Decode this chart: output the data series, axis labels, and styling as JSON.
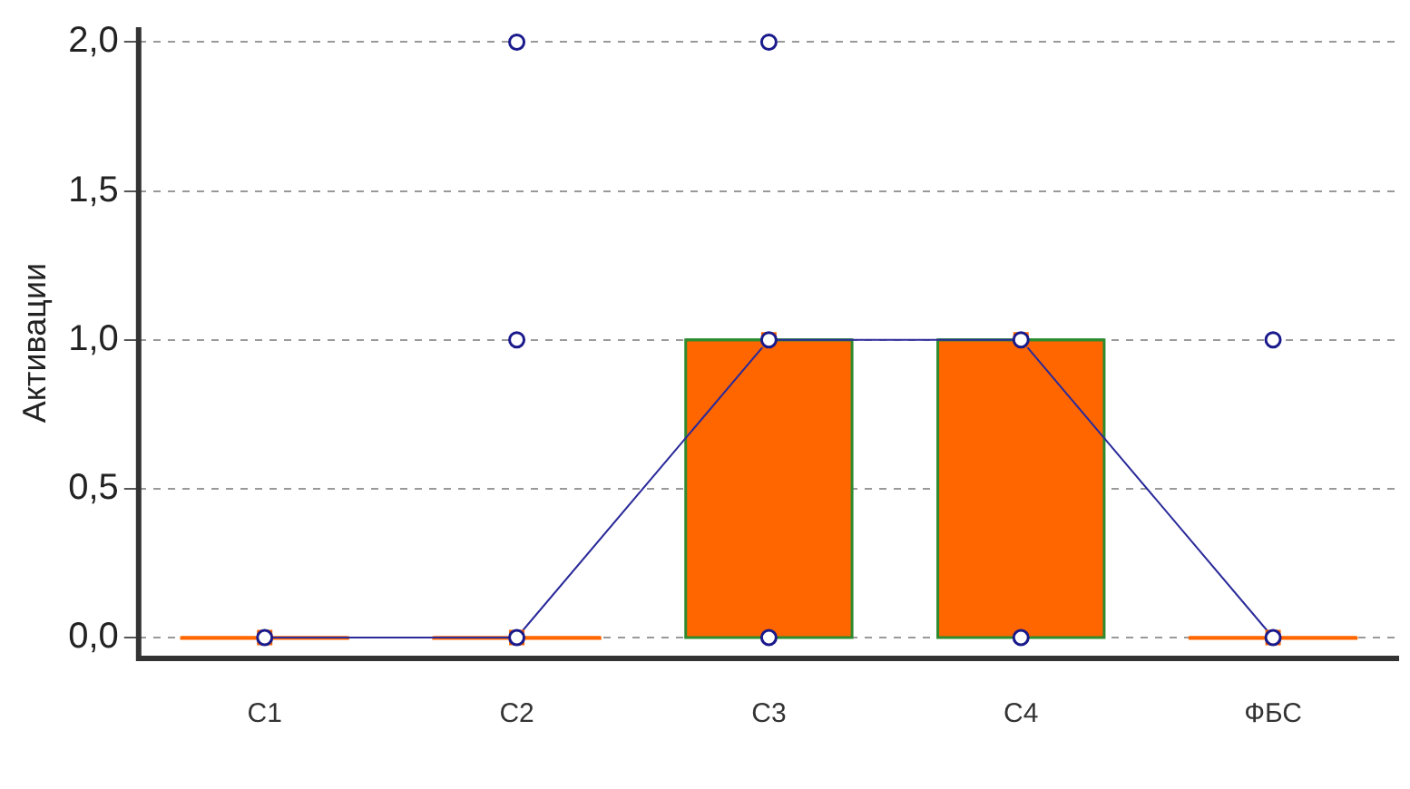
{
  "chart_data": {
    "type": "box",
    "ylabel": "Активации",
    "categories": [
      "C1",
      "C2",
      "C3",
      "C4",
      "ФБС"
    ],
    "series": [
      {
        "type": "box",
        "color": "#ff6600",
        "boxes": [
          {
            "low": 0,
            "q1": 0,
            "median": 0,
            "q3": 0,
            "high": 0
          },
          {
            "low": 0,
            "q1": 0,
            "median": 0,
            "q3": 0,
            "high": 0
          },
          {
            "low": 0,
            "q1": 0,
            "median": 1,
            "q3": 1,
            "high": 1
          },
          {
            "low": 0,
            "q1": 0,
            "median": 1,
            "q3": 1,
            "high": 1
          },
          {
            "low": 0,
            "q1": 0,
            "median": 0,
            "q3": 0,
            "high": 0
          }
        ]
      },
      {
        "type": "line",
        "color": "#2a2a9a",
        "marker": "square",
        "values": [
          0,
          0,
          1,
          1,
          0
        ]
      },
      {
        "type": "scatter",
        "color": "#1a1a8c",
        "marker": "circle",
        "x": [
          "C1",
          "C2",
          "C2",
          "C2",
          "C3",
          "C3",
          "C3",
          "C4",
          "C4",
          "ФБС",
          "ФБС"
        ],
        "values": [
          0,
          0,
          1,
          2,
          0,
          1,
          2,
          0,
          1,
          0,
          1
        ]
      }
    ],
    "ylim": [
      -0.07,
      2.05
    ],
    "yticks": [
      {
        "value": 0,
        "label": "0,0"
      },
      {
        "value": 0.5,
        "label": "0,5"
      },
      {
        "value": 1,
        "label": "1,0"
      },
      {
        "value": 1.5,
        "label": "1,5"
      },
      {
        "value": 2,
        "label": "2,0"
      }
    ],
    "grid": "y",
    "legend": false
  }
}
